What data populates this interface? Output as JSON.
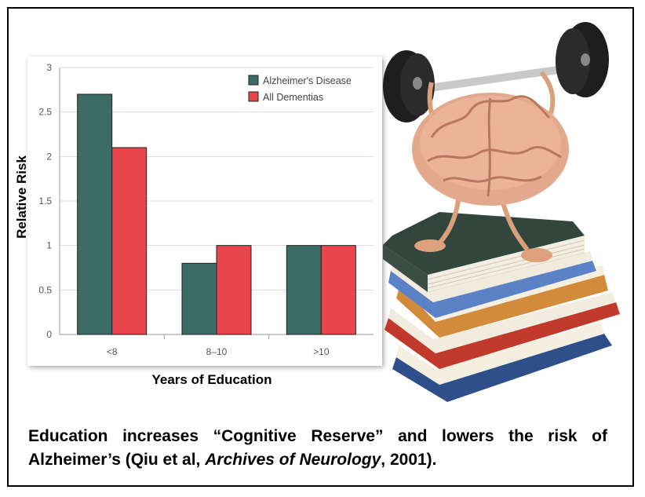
{
  "chart_data": {
    "type": "bar",
    "categories": [
      "<8",
      "8–10",
      ">10"
    ],
    "series": [
      {
        "name": "Alzheimer's Disease",
        "values": [
          2.7,
          0.8,
          1.0
        ],
        "color": "#3d6b66"
      },
      {
        "name": "All Dementias",
        "values": [
          2.1,
          1.0,
          1.0
        ],
        "color": "#e8464b"
      }
    ],
    "ylim": [
      0,
      3
    ],
    "yticks": [
      "0",
      "0.5",
      "1",
      "1.5",
      "2",
      "2.5",
      "3"
    ],
    "ylabel": "Relative Risk",
    "xlabel": "Years of Education",
    "legend_position": "top-right",
    "grid": true
  },
  "caption": {
    "part1": "Education increases “Cognitive Reserve” and lowers the risk of Alzheimer’s (Qiu et al, ",
    "journal": "Archives of Neurology",
    "part2": ", 2001)."
  },
  "illustration": {
    "icon": "brain-lifting-barbell-on-books-icon"
  }
}
